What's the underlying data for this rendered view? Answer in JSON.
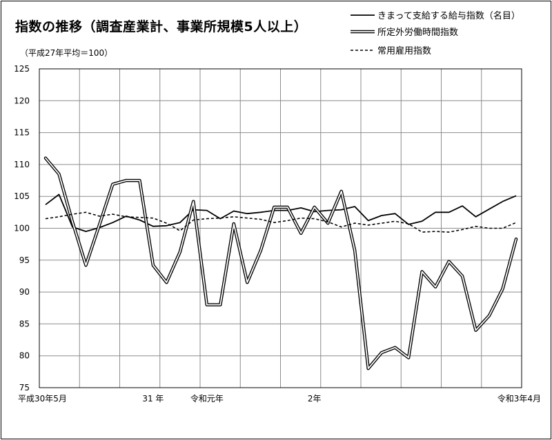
{
  "title": "指数の推移（調査産業計、事業所規模5人以上）",
  "subtitle": "（平成27年平均＝100）",
  "chart_data": {
    "type": "line",
    "title": "指数の推移（調査産業計、事業所規模5人以上）",
    "ylim": [
      75,
      125
    ],
    "yticks": [
      75,
      80,
      85,
      90,
      95,
      100,
      105,
      110,
      115,
      120,
      125
    ],
    "grid": true,
    "legend_position": "top-right",
    "x_labels": [
      {
        "index": 0,
        "label": "平成30年5月"
      },
      {
        "index": 8,
        "label": "31 年"
      },
      {
        "index": 12,
        "label": "令和元年"
      },
      {
        "index": 20,
        "label": "2年"
      },
      {
        "index": 35,
        "label": "令和3年4月"
      }
    ],
    "series": [
      {
        "name": "きまって支給する給与指数（名目）",
        "style": "solid",
        "values": [
          103.7,
          105.3,
          100.2,
          99.5,
          100.1,
          100.9,
          101.9,
          101.3,
          100.3,
          100.4,
          100.9,
          102.9,
          102.8,
          101.5,
          102.7,
          102.3,
          102.5,
          102.8,
          102.8,
          103.2,
          102.6,
          102.8,
          102.9,
          103.4,
          101.2,
          102.0,
          102.3,
          100.6,
          101.1,
          102.5,
          102.5,
          103.5,
          101.8,
          103.0,
          104.2,
          105.1
        ]
      },
      {
        "name": "所定外労働時間指数",
        "style": "double",
        "values": [
          111.0,
          108.5,
          101.0,
          94.2,
          100.5,
          106.9,
          107.5,
          107.5,
          94.2,
          91.5,
          96.3,
          104.2,
          88.0,
          88.0,
          100.7,
          91.5,
          96.5,
          103.3,
          103.3,
          99.2,
          103.3,
          100.8,
          105.8,
          96.5,
          78.0,
          80.5,
          81.3,
          79.7,
          93.2,
          90.8,
          94.8,
          92.5,
          84.0,
          86.3,
          90.5,
          98.3
        ]
      },
      {
        "name": "常用雇用指数",
        "style": "dashed",
        "values": [
          101.5,
          101.8,
          102.2,
          102.5,
          101.9,
          102.2,
          101.8,
          101.7,
          101.6,
          100.8,
          99.6,
          101.3,
          101.5,
          101.6,
          101.8,
          101.6,
          101.4,
          100.9,
          101.2,
          101.6,
          101.5,
          101.0,
          100.2,
          100.8,
          100.5,
          100.8,
          101.1,
          100.7,
          99.4,
          99.5,
          99.4,
          99.8,
          100.3,
          100.0,
          100.0,
          100.9
        ]
      }
    ]
  }
}
